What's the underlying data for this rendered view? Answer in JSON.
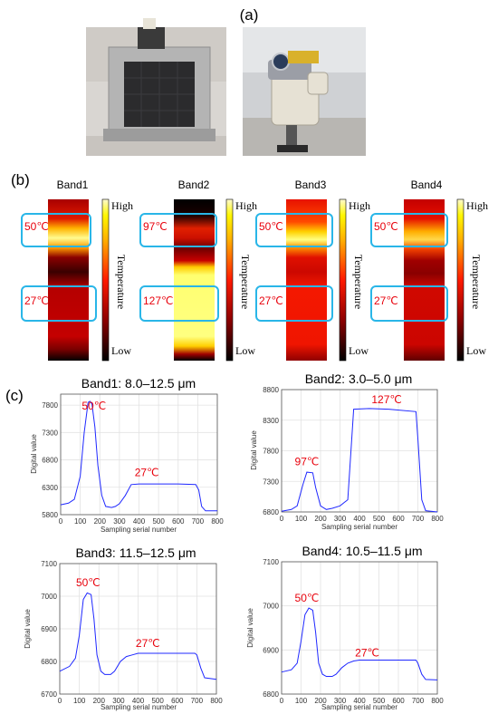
{
  "panel_labels": {
    "a": "(a)",
    "b": "(b)",
    "c": "(c)"
  },
  "band_strips": [
    {
      "title": "Band1",
      "boxes": [
        "50℃",
        "27℃"
      ]
    },
    {
      "title": "Band2",
      "boxes": [
        "97℃",
        "127℃"
      ]
    },
    {
      "title": "Band3",
      "boxes": [
        "50℃",
        "27℃"
      ]
    },
    {
      "title": "Band4",
      "boxes": [
        "50℃",
        "27℃"
      ]
    }
  ],
  "colorbar": {
    "high": "High",
    "low": "Low",
    "label": "Temperature"
  },
  "colors": {
    "box": "#29b6e8",
    "annotation": "#e8000b",
    "line": "#1f28ff",
    "cmap": [
      "#000000",
      "#8c0000",
      "#ff1a00",
      "#ffb000",
      "#fff700",
      "#fffbd0"
    ]
  },
  "chart_data": [
    {
      "type": "line",
      "title": "Band1: 8.0–12.5 μm",
      "xlabel": "Sampling serial number",
      "ylabel": "Digital value",
      "xlim": [
        0,
        800
      ],
      "ylim": [
        5800,
        8000
      ],
      "xticks": [
        "0",
        "100",
        "200",
        "300",
        "400",
        "500",
        "600",
        "700",
        "800"
      ],
      "yticks": [
        "5800",
        "6300",
        "6800",
        "7300",
        "7800"
      ],
      "grid": true,
      "series": [
        {
          "x": [
            0,
            40,
            70,
            100,
            120,
            140,
            150,
            160,
            175,
            190,
            210,
            230,
            260,
            280,
            300,
            330,
            360,
            400,
            500,
            600,
            690,
            705,
            720,
            740,
            800
          ],
          "y": [
            5980,
            6010,
            6080,
            6500,
            7300,
            7850,
            7870,
            7820,
            7400,
            6700,
            6150,
            5950,
            5930,
            5950,
            6000,
            6150,
            6350,
            6360,
            6360,
            6360,
            6350,
            6250,
            5950,
            5870,
            5870
          ]
        }
      ],
      "annotations": [
        {
          "text": "50℃",
          "x": 170,
          "y": 7720
        },
        {
          "text": "27℃",
          "x": 440,
          "y": 6500
        }
      ]
    },
    {
      "type": "line",
      "title": "Band2: 3.0–5.0 μm",
      "xlabel": "Sampling serial number",
      "ylabel": "Digital value",
      "xlim": [
        0,
        800
      ],
      "ylim": [
        6800,
        8800
      ],
      "xticks": [
        "0",
        "100",
        "200",
        "300",
        "400",
        "500",
        "600",
        "700",
        "800"
      ],
      "yticks": [
        "6800",
        "7300",
        "7800",
        "8300",
        "8800"
      ],
      "grid": true,
      "series": [
        {
          "x": [
            0,
            50,
            80,
            110,
            130,
            160,
            175,
            200,
            230,
            260,
            300,
            340,
            370,
            450,
            550,
            690,
            700,
            720,
            740,
            800
          ],
          "y": [
            6810,
            6840,
            6900,
            7250,
            7450,
            7440,
            7200,
            6900,
            6840,
            6860,
            6900,
            7000,
            8480,
            8490,
            8480,
            8440,
            8000,
            7000,
            6820,
            6800
          ]
        }
      ],
      "annotations": [
        {
          "text": "97℃",
          "x": 130,
          "y": 7560
        },
        {
          "text": "127℃",
          "x": 540,
          "y": 8580
        }
      ]
    },
    {
      "type": "line",
      "title": "Band3: 11.5–12.5 μm",
      "xlabel": "Sampling serial number",
      "ylabel": "Digital value",
      "xlim": [
        0,
        800
      ],
      "ylim": [
        6700,
        7100
      ],
      "xticks": [
        "0",
        "100",
        "200",
        "300",
        "400",
        "500",
        "600",
        "700",
        "800"
      ],
      "yticks": [
        "6700",
        "6800",
        "6900",
        "7000",
        "7100"
      ],
      "grid": true,
      "series": [
        {
          "x": [
            0,
            50,
            80,
            100,
            120,
            140,
            160,
            175,
            190,
            210,
            230,
            260,
            280,
            310,
            340,
            370,
            400,
            500,
            600,
            690,
            700,
            720,
            740,
            800
          ],
          "y": [
            6770,
            6785,
            6810,
            6880,
            6990,
            7010,
            7005,
            6930,
            6820,
            6770,
            6760,
            6760,
            6770,
            6800,
            6815,
            6820,
            6825,
            6825,
            6825,
            6825,
            6820,
            6780,
            6750,
            6745
          ]
        }
      ],
      "annotations": [
        {
          "text": "50℃",
          "x": 145,
          "y": 7030
        },
        {
          "text": "27℃",
          "x": 450,
          "y": 6845
        }
      ]
    },
    {
      "type": "line",
      "title": "Band4: 10.5–11.5 μm",
      "xlabel": "Sampling serial number",
      "ylabel": "Digital value",
      "xlim": [
        0,
        800
      ],
      "ylim": [
        6800,
        7100
      ],
      "xticks": [
        "0",
        "100",
        "200",
        "300",
        "400",
        "500",
        "600",
        "700",
        "800"
      ],
      "yticks": [
        "6800",
        "6900",
        "7000",
        "7100"
      ],
      "grid": true,
      "series": [
        {
          "x": [
            0,
            50,
            80,
            100,
            120,
            140,
            160,
            175,
            190,
            210,
            230,
            260,
            280,
            310,
            340,
            370,
            400,
            500,
            600,
            690,
            700,
            720,
            740,
            800
          ],
          "y": [
            6850,
            6855,
            6870,
            6920,
            6980,
            6995,
            6990,
            6940,
            6870,
            6845,
            6840,
            6840,
            6845,
            6860,
            6870,
            6875,
            6877,
            6877,
            6877,
            6877,
            6870,
            6845,
            6833,
            6832
          ]
        }
      ],
      "annotations": [
        {
          "text": "50℃",
          "x": 130,
          "y": 7010
        },
        {
          "text": "27℃",
          "x": 440,
          "y": 6885
        }
      ]
    }
  ]
}
